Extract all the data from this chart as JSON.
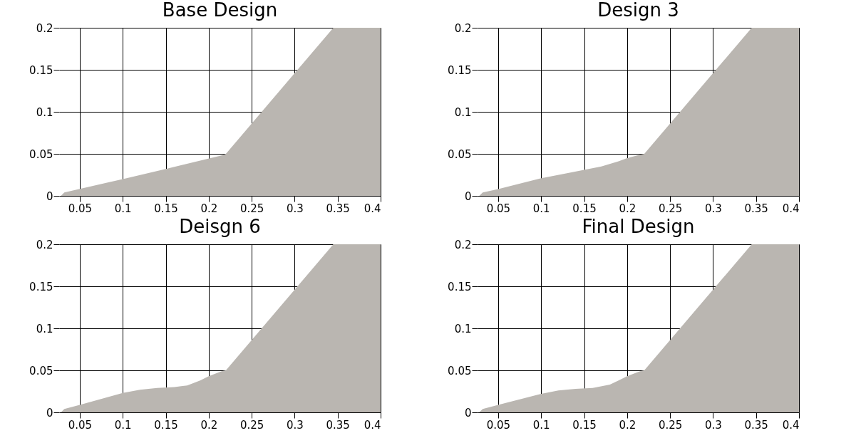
{
  "chart_data": [
    {
      "type": "area",
      "title": "Base Design",
      "color": "#bab6b1",
      "grid": true,
      "xlim": [
        0.026,
        0.4
      ],
      "ylim": [
        0,
        0.2
      ],
      "xticks": [
        0.05,
        0.1,
        0.15,
        0.2,
        0.25,
        0.3,
        0.35,
        0.4
      ],
      "yticks": [
        0,
        0.05,
        0.1,
        0.15,
        0.2
      ],
      "x": [
        0.028,
        0.032,
        0.1,
        0.15,
        0.215,
        0.22,
        0.345,
        0.4
      ],
      "values": [
        0,
        0.004,
        0.02,
        0.032,
        0.048,
        0.05,
        0.2,
        0.2
      ]
    },
    {
      "type": "area",
      "title": "Design 3",
      "color": "#bab6b1",
      "grid": true,
      "xlim": [
        0.026,
        0.4
      ],
      "ylim": [
        0,
        0.2
      ],
      "xticks": [
        0.05,
        0.1,
        0.15,
        0.2,
        0.25,
        0.3,
        0.35,
        0.4
      ],
      "yticks": [
        0,
        0.05,
        0.1,
        0.15,
        0.2
      ],
      "x": [
        0.028,
        0.032,
        0.05,
        0.1,
        0.13,
        0.15,
        0.17,
        0.19,
        0.2,
        0.215,
        0.22,
        0.345,
        0.4
      ],
      "values": [
        0,
        0.004,
        0.008,
        0.021,
        0.027,
        0.031,
        0.035,
        0.041,
        0.045,
        0.049,
        0.05,
        0.2,
        0.2
      ]
    },
    {
      "type": "area",
      "title": "Deisgn 6",
      "color": "#bab6b1",
      "grid": true,
      "xlim": [
        0.026,
        0.4
      ],
      "ylim": [
        0,
        0.2
      ],
      "xticks": [
        0.05,
        0.1,
        0.15,
        0.2,
        0.25,
        0.3,
        0.35,
        0.4
      ],
      "yticks": [
        0,
        0.05,
        0.1,
        0.15,
        0.2
      ],
      "x": [
        0.028,
        0.032,
        0.05,
        0.1,
        0.12,
        0.14,
        0.16,
        0.175,
        0.19,
        0.2,
        0.215,
        0.22,
        0.345,
        0.4
      ],
      "values": [
        0,
        0.004,
        0.009,
        0.023,
        0.027,
        0.029,
        0.03,
        0.032,
        0.038,
        0.043,
        0.049,
        0.05,
        0.2,
        0.2
      ]
    },
    {
      "type": "area",
      "title": "Final Design",
      "color": "#bab6b1",
      "grid": true,
      "xlim": [
        0.026,
        0.4
      ],
      "ylim": [
        0,
        0.2
      ],
      "xticks": [
        0.05,
        0.1,
        0.15,
        0.2,
        0.25,
        0.3,
        0.35,
        0.4
      ],
      "yticks": [
        0,
        0.05,
        0.1,
        0.15,
        0.2
      ],
      "x": [
        0.028,
        0.032,
        0.05,
        0.1,
        0.12,
        0.14,
        0.16,
        0.18,
        0.19,
        0.2,
        0.215,
        0.22,
        0.345,
        0.4
      ],
      "values": [
        0,
        0.004,
        0.009,
        0.022,
        0.026,
        0.028,
        0.029,
        0.033,
        0.038,
        0.043,
        0.049,
        0.05,
        0.2,
        0.2
      ]
    }
  ]
}
